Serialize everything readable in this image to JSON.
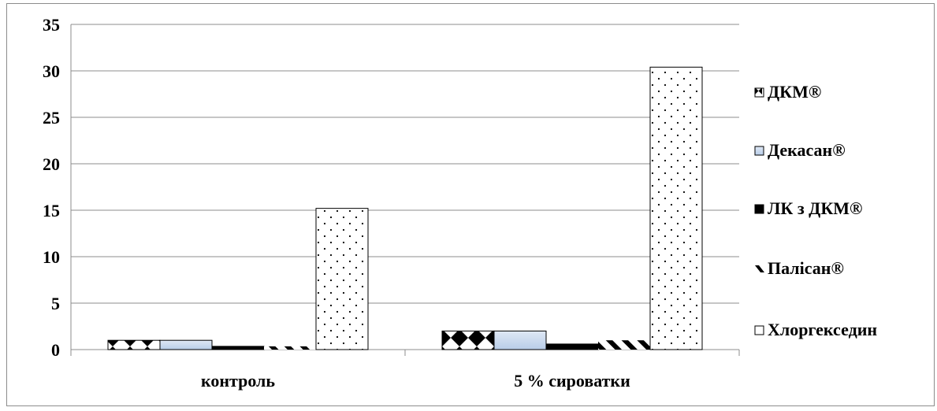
{
  "chart_data": {
    "type": "bar",
    "categories": [
      "контроль",
      "5 % сироватки"
    ],
    "series": [
      {
        "name": "ДКМ®",
        "values": [
          1.0,
          2.0
        ]
      },
      {
        "name": "Декасан®",
        "values": [
          1.0,
          2.0
        ]
      },
      {
        "name": "ЛК з ДКМ®",
        "values": [
          0.35,
          0.6
        ]
      },
      {
        "name": "Палісан®",
        "values": [
          0.35,
          1.0
        ]
      },
      {
        "name": "Хлоргекседин",
        "values": [
          15.2,
          30.4
        ]
      }
    ],
    "ylim": [
      0,
      35
    ],
    "yticks": [
      0,
      5,
      10,
      15,
      20,
      25,
      30,
      35
    ],
    "grid": true,
    "legend": "right",
    "title": "",
    "xlabel": "",
    "ylabel": ""
  }
}
